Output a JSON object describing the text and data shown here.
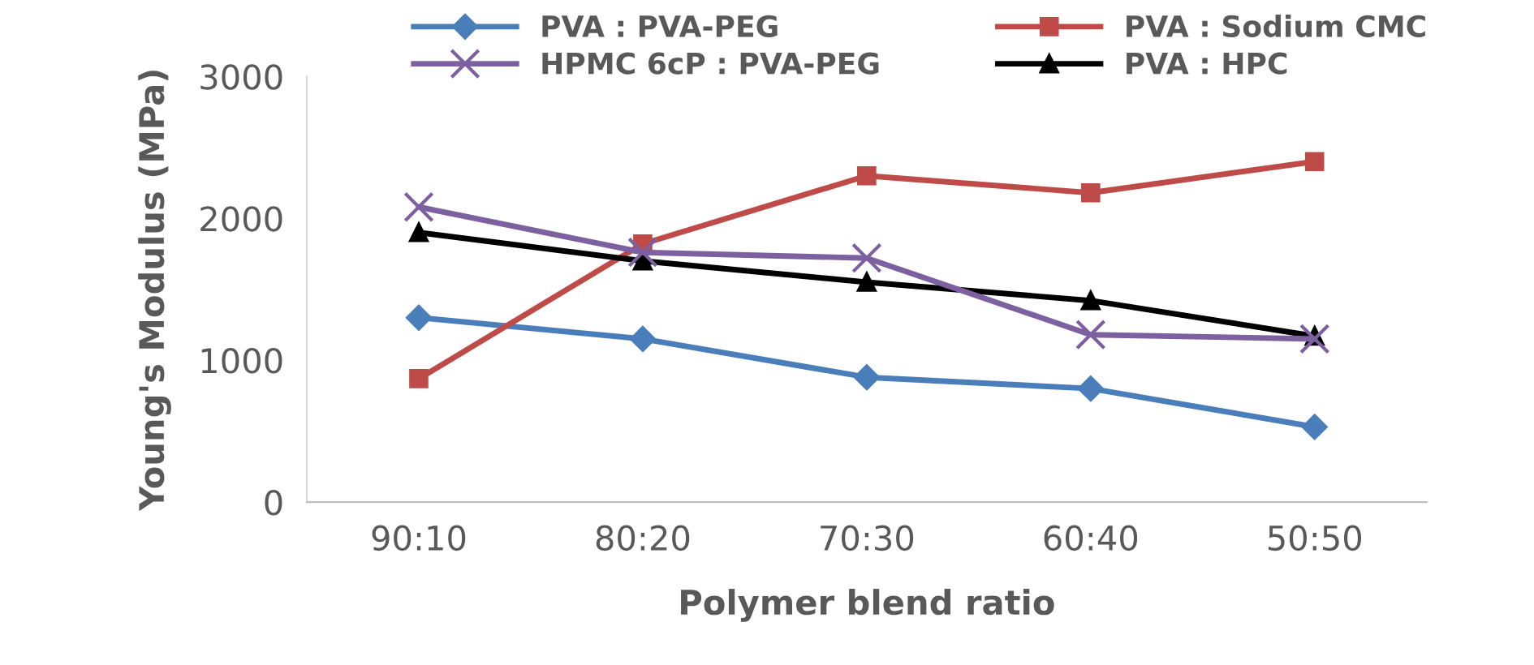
{
  "chart_data": {
    "type": "line",
    "xlabel": "Polymer blend ratio",
    "ylabel": "Young's Modulus (MPa)",
    "categories": [
      "90:10",
      "80:20",
      "70:30",
      "60:40",
      "50:50"
    ],
    "series": [
      {
        "name": "PVA : PVA-PEG",
        "color": "#4a7ebb",
        "marker": "diamond",
        "values": [
          1300,
          1150,
          880,
          800,
          530
        ]
      },
      {
        "name": "PVA : Sodium CMC",
        "color": "#be4b48",
        "marker": "square",
        "values": [
          870,
          1820,
          2300,
          2180,
          2400
        ]
      },
      {
        "name": "HPMC 6cP : PVA-PEG",
        "color": "#7d60a0",
        "marker": "cross",
        "values": [
          2080,
          1760,
          1720,
          1180,
          1150
        ]
      },
      {
        "name": "PVA : HPC",
        "color": "#000000",
        "marker": "triangle",
        "values": [
          1900,
          1700,
          1550,
          1420,
          1170
        ]
      }
    ],
    "ylim": [
      0,
      3000
    ],
    "yticks": [
      0,
      1000,
      2000,
      3000
    ],
    "grid": false,
    "legend": "top",
    "line_style": "solid"
  }
}
